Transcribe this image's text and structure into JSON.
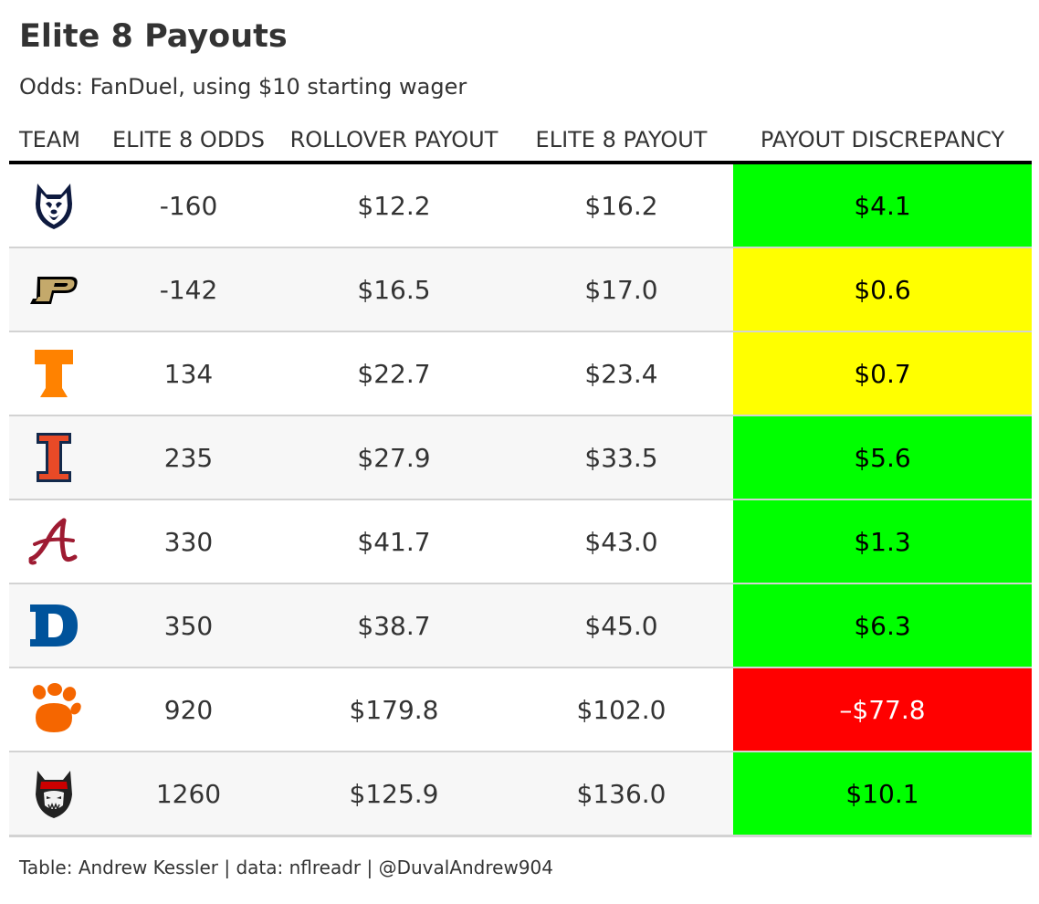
{
  "title": "Elite 8 Payouts",
  "subtitle": "Odds: FanDuel, using $10 starting wager",
  "footer": "Table: Andrew Kessler | data: nflreadr | @DuvalAndrew904",
  "colors": {
    "green": "#00ff00",
    "yellow": "#ffff00",
    "red": "#ff0000"
  },
  "chart_data": {
    "type": "table",
    "columns": [
      "TEAM",
      "ELITE 8 ODDS",
      "ROLLOVER PAYOUT",
      "ELITE 8 PAYOUT",
      "PAYOUT DISCREPANCY"
    ],
    "rows": [
      {
        "team": "UConn",
        "logo": "uconn-husky-icon",
        "odds": "-160",
        "rollover": "$12.2",
        "elite8": "$16.2",
        "discrepancy": "$4.1",
        "discrepancy_value": 4.1,
        "color": "#00ff00"
      },
      {
        "team": "Purdue",
        "logo": "purdue-p-icon",
        "odds": "-142",
        "rollover": "$16.5",
        "elite8": "$17.0",
        "discrepancy": "$0.6",
        "discrepancy_value": 0.6,
        "color": "#ffff00"
      },
      {
        "team": "Tennessee",
        "logo": "tennessee-t-icon",
        "odds": "134",
        "rollover": "$22.7",
        "elite8": "$23.4",
        "discrepancy": "$0.7",
        "discrepancy_value": 0.7,
        "color": "#ffff00"
      },
      {
        "team": "Illinois",
        "logo": "illinois-i-icon",
        "odds": "235",
        "rollover": "$27.9",
        "elite8": "$33.5",
        "discrepancy": "$5.6",
        "discrepancy_value": 5.6,
        "color": "#00ff00"
      },
      {
        "team": "Alabama",
        "logo": "alabama-a-icon",
        "odds": "330",
        "rollover": "$41.7",
        "elite8": "$43.0",
        "discrepancy": "$1.3",
        "discrepancy_value": 1.3,
        "color": "#00ff00"
      },
      {
        "team": "Duke",
        "logo": "duke-d-icon",
        "odds": "350",
        "rollover": "$38.7",
        "elite8": "$45.0",
        "discrepancy": "$6.3",
        "discrepancy_value": 6.3,
        "color": "#00ff00"
      },
      {
        "team": "Clemson",
        "logo": "clemson-paw-icon",
        "odds": "920",
        "rollover": "$179.8",
        "elite8": "$102.0",
        "discrepancy": "–$77.8",
        "discrepancy_value": -77.8,
        "color": "#ff0000"
      },
      {
        "team": "NC State",
        "logo": "nc-state-wolf-icon",
        "odds": "1260",
        "rollover": "$125.9",
        "elite8": "$136.0",
        "discrepancy": "$10.1",
        "discrepancy_value": 10.1,
        "color": "#00ff00"
      }
    ]
  }
}
